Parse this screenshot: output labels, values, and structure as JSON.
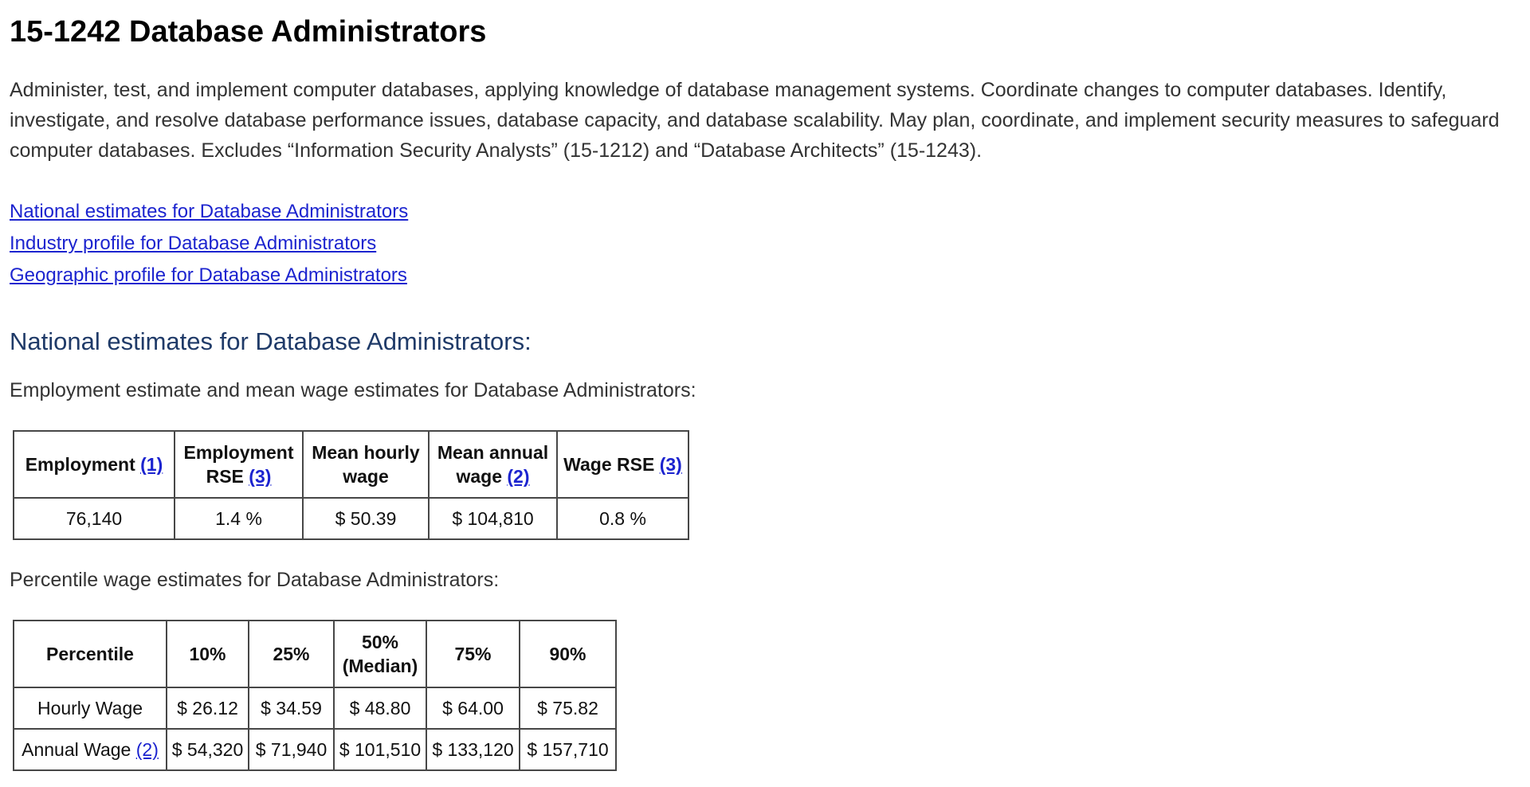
{
  "colors": {
    "link_blue": "#1c24cf",
    "heading_navy": "#1f3a68"
  },
  "page": {
    "title": "15-1242 Database Administrators",
    "description": "Administer, test, and implement computer databases, applying knowledge of database management systems. Coordinate changes to computer databases. Identify, investigate, and resolve database performance issues, database capacity, and database scalability. May plan, coordinate, and implement security measures to safeguard computer databases. Excludes “Information Security Analysts” (15-1212) and “Database Architects” (15-1243)."
  },
  "profile_links": [
    {
      "label": "National estimates for Database Administrators"
    },
    {
      "label": "Industry profile for Database Administrators"
    },
    {
      "label": "Geographic profile for Database Administrators"
    }
  ],
  "national_section": {
    "heading": "National estimates for Database Administrators:",
    "employment_intro": "Employment estimate and mean wage estimates for Database Administrators:",
    "percentile_intro": "Percentile wage estimates for Database Administrators:"
  },
  "employment_table": {
    "headers": [
      {
        "label": "Employment",
        "footnote": "(1)"
      },
      {
        "label": "Employment RSE",
        "footnote": "(3)"
      },
      {
        "label": "Mean hourly wage",
        "footnote": ""
      },
      {
        "label": "Mean annual wage",
        "footnote": "(2)"
      },
      {
        "label": "Wage RSE",
        "footnote": "(3)"
      }
    ],
    "row": [
      "76,140",
      "1.4 %",
      "$ 50.39",
      "$ 104,810",
      "0.8 %"
    ]
  },
  "percentile_table": {
    "headers": [
      "Percentile",
      "10%",
      "25%",
      "50% (Median)",
      "75%",
      "90%"
    ],
    "rows": [
      {
        "label": "Hourly Wage",
        "footnote": "",
        "values": [
          "$ 26.12",
          "$ 34.59",
          "$ 48.80",
          "$ 64.00",
          "$ 75.82"
        ]
      },
      {
        "label": "Annual Wage",
        "footnote": "(2)",
        "values": [
          "$ 54,320",
          "$ 71,940",
          "$ 101,510",
          "$ 133,120",
          "$ 157,710"
        ]
      }
    ]
  }
}
